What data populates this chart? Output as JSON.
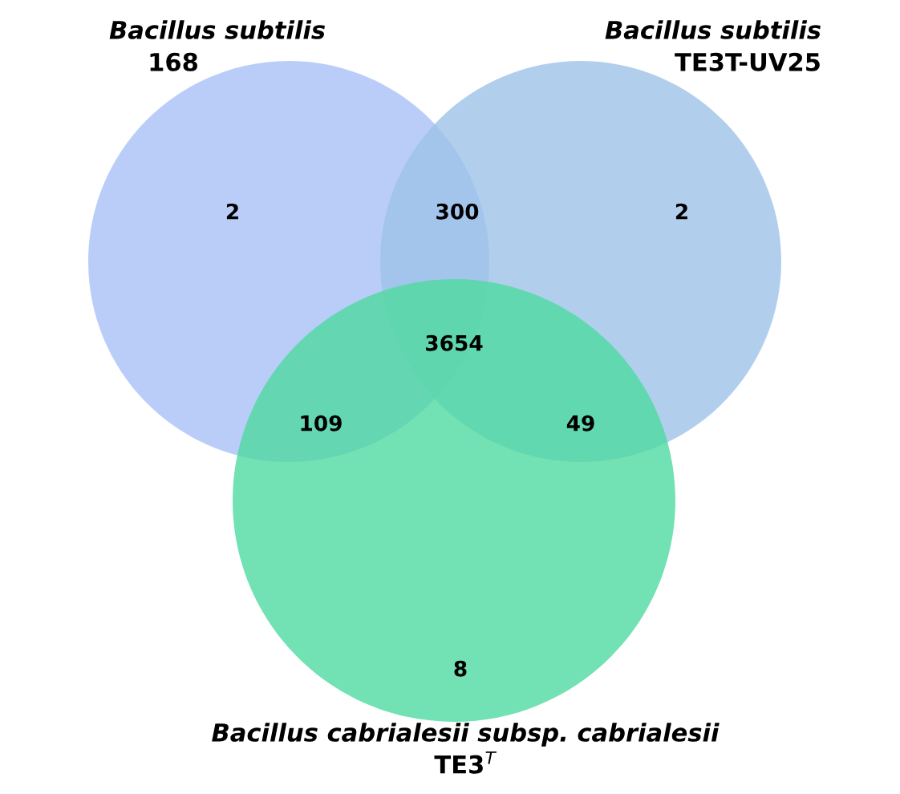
{
  "chart_data": {
    "type": "other",
    "values": [
      2,
      300,
      2,
      3654,
      109,
      49,
      8
    ],
    "data_labels": true,
    "annotations": [
      "Bacillus subtilis\n168",
      "Bacillus subtilis\nTE3T-UV25",
      "Bacillus cabrialesii subsp. cabrialesii\nTE3$^{T}$"
    ]
  }
}
